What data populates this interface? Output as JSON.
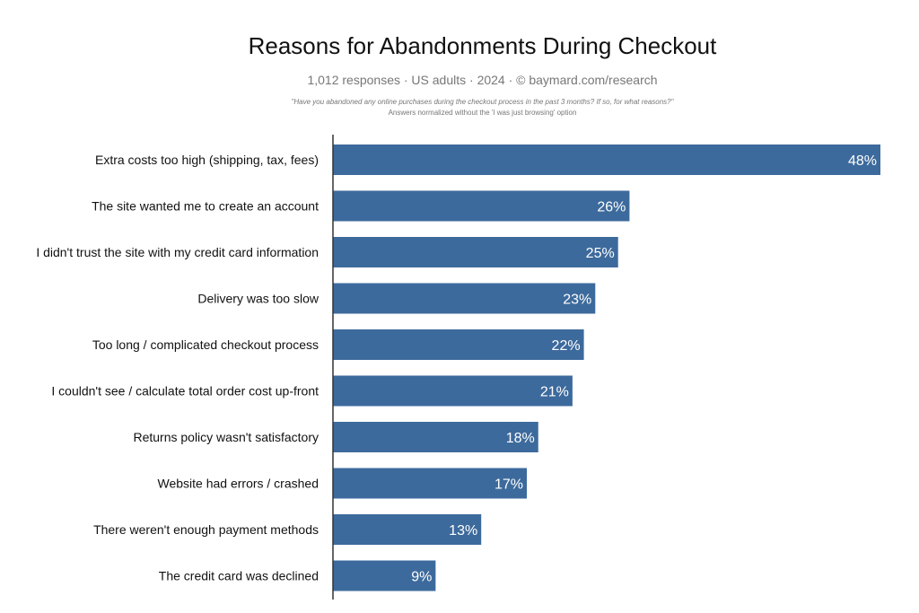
{
  "chart_data": {
    "type": "bar",
    "orientation": "horizontal",
    "title": "Reasons for Abandonments During Checkout",
    "subtitle": "1,012 responses  ·  US adults  ·  2024  ·  ©  baymard.com/research",
    "question": "\"Have you abandoned any online purchases during the checkout process in the past 3 months? If so, for what reasons?\"",
    "note": "Answers normalized without the 'I was just browsing' option",
    "categories": [
      "Extra costs too high (shipping, tax, fees)",
      "The site wanted me to create an account",
      "I didn't trust the site with my credit card information",
      "Delivery was too slow",
      "Too long / complicated checkout process",
      "I couldn't see / calculate total order cost up-front",
      "Returns policy wasn't satisfactory",
      "Website had errors / crashed",
      "There weren't enough payment methods",
      "The credit card was declined"
    ],
    "values": [
      48,
      26,
      25,
      23,
      22,
      21,
      18,
      17,
      13,
      9
    ],
    "value_labels": [
      "48%",
      "26%",
      "25%",
      "23%",
      "22%",
      "21%",
      "18%",
      "17%",
      "13%",
      "9%"
    ],
    "unit": "%",
    "xlim": [
      0,
      48
    ],
    "grid": false,
    "bar_color": "#3d6a9c"
  }
}
